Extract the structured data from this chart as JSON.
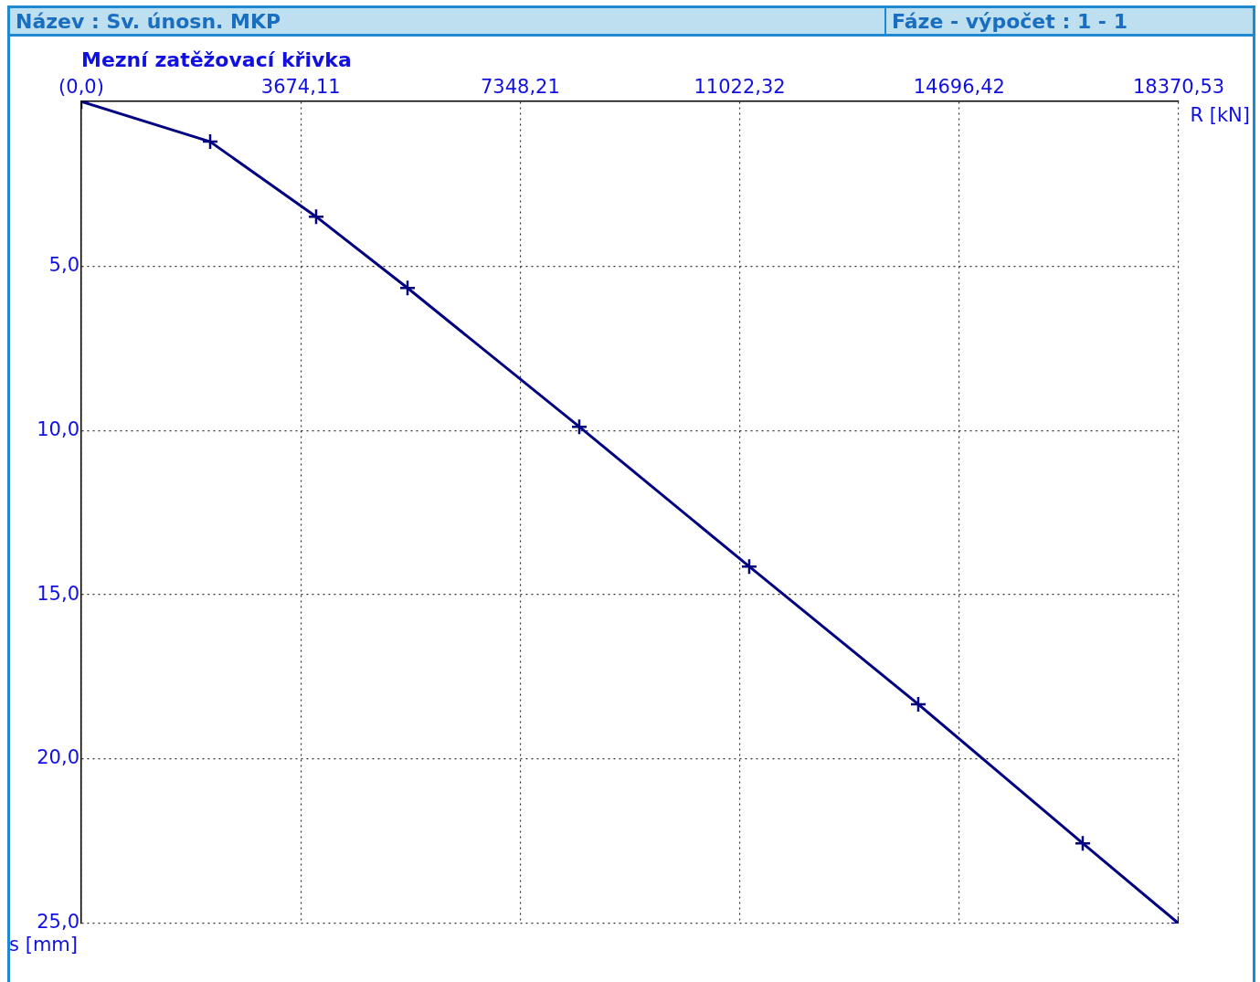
{
  "chart_data": {
    "type": "line",
    "title": "Mezní zatěžovací křivka",
    "xlabel": "R [kN]",
    "ylabel": "s [mm]",
    "annotations": [
      "Název : Sv. únosn. MKP",
      "Fáze - výpočet : 1 - 1"
    ],
    "x": [
      0,
      2157,
      3931,
      5461,
      8336,
      11181,
      14011,
      16764,
      18370.53
    ],
    "series": [
      {
        "color": "#000080",
        "values": [
          0,
          1.22,
          3.5,
          5.67,
          9.89,
          14.14,
          18.33,
          22.56,
          25
        ]
      }
    ],
    "xlim": [
      0,
      18370.53
    ],
    "xticks": [
      {
        "value": 0,
        "label": "(0,0)"
      },
      {
        "value": 3674.11,
        "label": "3674,11"
      },
      {
        "value": 7348.21,
        "label": "7348,21"
      },
      {
        "value": 11022.32,
        "label": "11022,32"
      },
      {
        "value": 14696.42,
        "label": "14696,42"
      },
      {
        "value": 18370.53,
        "label": "18370,53"
      }
    ],
    "ylim": [
      25,
      0
    ],
    "yticks": [
      {
        "value": 5,
        "label": "5,0"
      },
      {
        "value": 10,
        "label": "10,0"
      },
      {
        "value": 15,
        "label": "15,0"
      },
      {
        "value": 20,
        "label": "20,0"
      },
      {
        "value": 25,
        "label": "25,0"
      }
    ],
    "grid": true,
    "legend": false,
    "marker": "cross",
    "line_style": "solid"
  }
}
